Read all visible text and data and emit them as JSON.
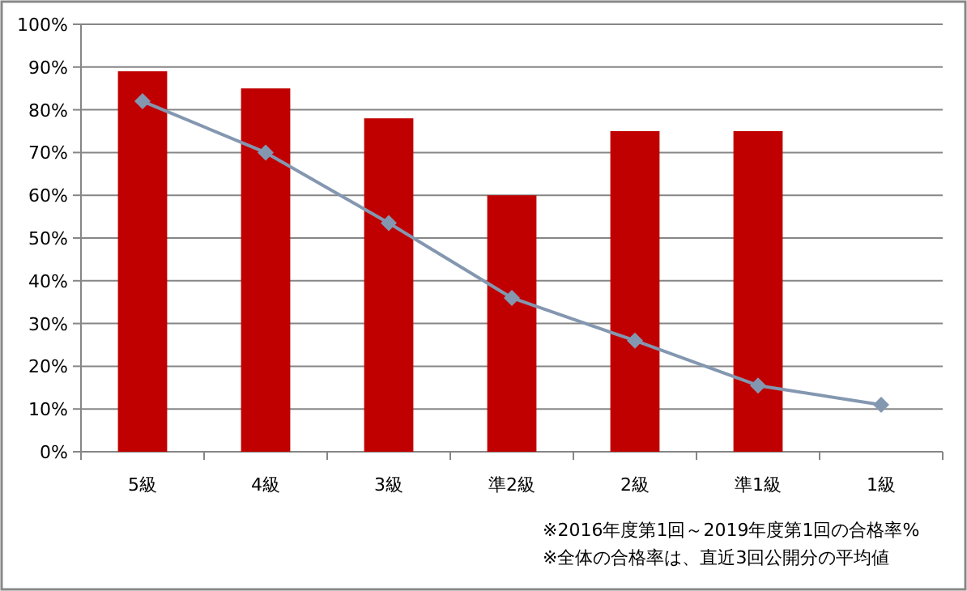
{
  "chart_data": {
    "type": "bar",
    "categories": [
      "5級",
      "4級",
      "3級",
      "準2級",
      "2級",
      "準1級",
      "1級"
    ],
    "series": [
      {
        "color": "#c00000",
        "values": [
          89,
          85,
          78,
          60,
          75,
          75,
          null
        ]
      },
      {
        "type": "line",
        "color": "#8497b0",
        "marker": "diamond",
        "values": [
          82,
          70,
          53.5,
          36,
          26,
          15.5,
          11
        ]
      }
    ],
    "ylim": [
      0,
      100
    ],
    "yticks": [
      {
        "value": 0,
        "label": "0%"
      },
      {
        "value": 10,
        "label": "10%"
      },
      {
        "value": 20,
        "label": "20%"
      },
      {
        "value": 30,
        "label": "30%"
      },
      {
        "value": 40,
        "label": "40%"
      },
      {
        "value": 50,
        "label": "50%"
      },
      {
        "value": 60,
        "label": "60%"
      },
      {
        "value": 70,
        "label": "70%"
      },
      {
        "value": 80,
        "label": "80%"
      },
      {
        "value": 90,
        "label": "90%"
      },
      {
        "value": 100,
        "label": "100%"
      }
    ],
    "grid": "y",
    "annotations": [
      "※2016年度第1回～2019年度第1回の合格率%",
      "※全体の合格率は、直近3回公開分の平均値"
    ]
  }
}
